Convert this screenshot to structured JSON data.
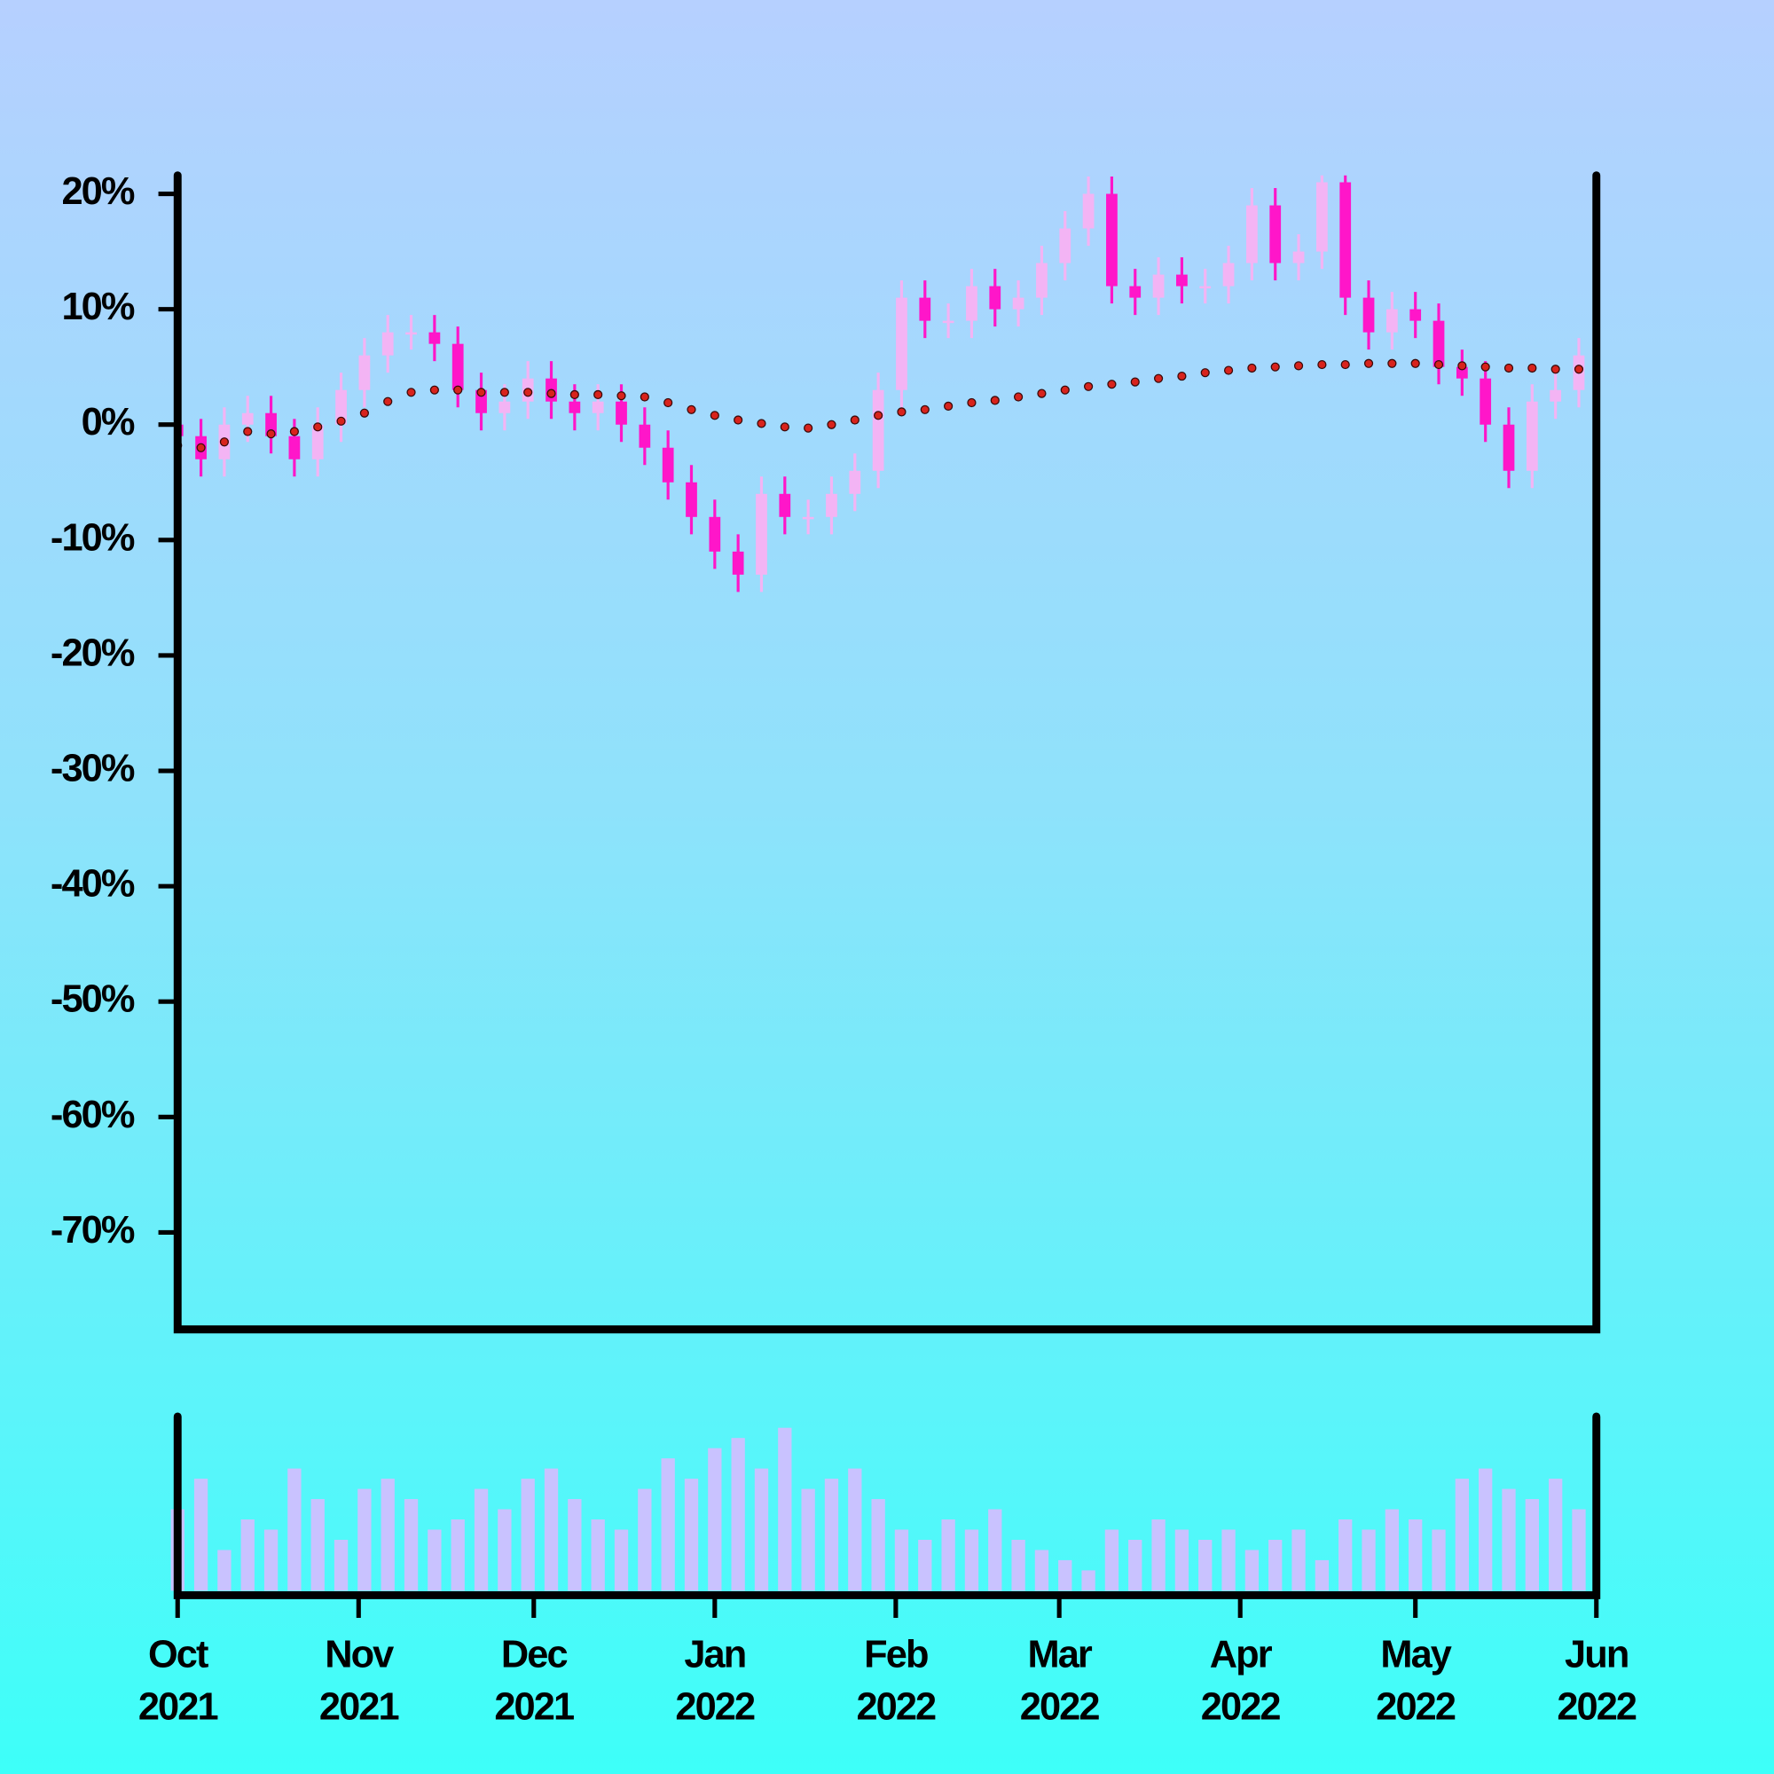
{
  "chart_data": {
    "type": "candlestick",
    "x": [
      0,
      4,
      8,
      12,
      16,
      20,
      24,
      28,
      32,
      36,
      40,
      44,
      48,
      52,
      56,
      60,
      64,
      68,
      72,
      76,
      80,
      84,
      88,
      92,
      96,
      100,
      104,
      108,
      112,
      116,
      120,
      124,
      128,
      132,
      136,
      140,
      144,
      148,
      152,
      156,
      160,
      164,
      168,
      172,
      176,
      180,
      184,
      188,
      192,
      196,
      200,
      204,
      208,
      212,
      216,
      220,
      224,
      228,
      232,
      236,
      240
    ],
    "open": [
      0,
      -1,
      -3,
      0,
      1,
      -1,
      -3,
      0,
      3,
      6,
      8,
      8,
      7,
      3,
      1,
      2,
      4,
      2,
      1,
      2,
      0,
      -2,
      -5,
      -8,
      -11,
      -13,
      -6,
      -8,
      -8,
      -6,
      -4,
      3,
      11,
      9,
      9,
      12,
      10,
      11,
      14,
      17,
      20,
      12,
      11,
      13,
      12,
      12,
      14,
      19,
      14,
      15,
      21,
      11,
      8,
      10,
      9,
      5,
      4,
      0,
      -4,
      2,
      3
    ],
    "high": [
      1.5,
      0.5,
      1.5,
      2.5,
      2.5,
      0.5,
      1.5,
      4.5,
      7.5,
      9.5,
      9.5,
      9.5,
      8.5,
      4.5,
      3.5,
      5.5,
      5.5,
      3.5,
      3.5,
      3.5,
      1.5,
      -0.5,
      -3.5,
      -6.5,
      -9.5,
      -4.5,
      -4.5,
      -6.5,
      -4.5,
      -2.5,
      4.5,
      12.5,
      12.5,
      10.5,
      13.5,
      13.5,
      12.5,
      15.5,
      18.5,
      21.5,
      21.5,
      13.5,
      14.5,
      14.5,
      13.5,
      15.5,
      20.5,
      20.5,
      16.5,
      22.5,
      22.5,
      12.5,
      11.5,
      11.5,
      10.5,
      6.5,
      5.5,
      1.5,
      3.5,
      4.5,
      7.5
    ],
    "low": [
      -2.5,
      -4.5,
      -4.5,
      -1.5,
      -2.5,
      -4.5,
      -4.5,
      -1.5,
      1.5,
      4.5,
      6.5,
      5.5,
      1.5,
      -0.5,
      -0.5,
      0.5,
      0.5,
      -0.5,
      -0.5,
      -1.5,
      -3.5,
      -6.5,
      -9.5,
      -12.5,
      -14.5,
      -14.5,
      -9.5,
      -9.5,
      -9.5,
      -7.5,
      -5.5,
      1.5,
      7.5,
      7.5,
      7.5,
      8.5,
      8.5,
      9.5,
      12.5,
      15.5,
      10.5,
      9.5,
      9.5,
      10.5,
      10.5,
      10.5,
      12.5,
      12.5,
      12.5,
      13.5,
      9.5,
      6.5,
      6.5,
      7.5,
      3.5,
      2.5,
      -1.5,
      -5.5,
      -5.5,
      0.5,
      1.5
    ],
    "close": [
      -1,
      -3,
      0,
      1,
      -1,
      -3,
      0,
      3,
      6,
      8,
      8,
      7,
      3,
      1,
      2,
      4,
      2,
      1,
      2,
      0,
      -2,
      -5,
      -8,
      -11,
      -13,
      -6,
      -8,
      -8,
      -6,
      -4,
      3,
      11,
      9,
      9,
      12,
      10,
      11,
      14,
      17,
      20,
      12,
      11,
      13,
      12,
      12,
      14,
      19,
      14,
      15,
      21,
      11,
      8,
      10,
      9,
      5,
      4,
      0,
      -4,
      2,
      3,
      6
    ],
    "moving_average": [
      -1.8,
      -2,
      -1.5,
      -0.6,
      -0.8,
      -0.6,
      -0.2,
      0.3,
      1.0,
      2.0,
      2.8,
      3.0,
      3.0,
      2.8,
      2.8,
      2.8,
      2.7,
      2.6,
      2.6,
      2.5,
      2.4,
      1.9,
      1.3,
      0.8,
      0.4,
      0.1,
      -0.2,
      -0.3,
      0.0,
      0.4,
      0.8,
      1.1,
      1.3,
      1.6,
      1.9,
      2.1,
      2.4,
      2.7,
      3.0,
      3.3,
      3.5,
      3.7,
      4.0,
      4.2,
      4.5,
      4.7,
      4.9,
      5.0,
      5.1,
      5.2,
      5.2,
      5.3,
      5.3,
      5.3,
      5.2,
      5.1,
      5.0,
      4.9,
      4.9,
      4.8,
      4.8
    ],
    "volume": [
      40,
      55,
      20,
      35,
      30,
      60,
      45,
      25,
      50,
      55,
      45,
      30,
      35,
      50,
      40,
      55,
      60,
      45,
      35,
      30,
      50,
      65,
      55,
      70,
      75,
      60,
      80,
      50,
      55,
      60,
      45,
      30,
      25,
      35,
      30,
      40,
      25,
      20,
      15,
      10,
      30,
      25,
      35,
      30,
      25,
      30,
      20,
      25,
      30,
      15,
      35,
      30,
      40,
      35,
      30,
      55,
      60,
      50,
      45,
      55,
      40
    ],
    "up_color": "#f3b4f4",
    "down_color": "#ff16c9",
    "ma_color": "#d8231c",
    "volume_color": "#c9c2ff",
    "ylim": [
      -78.4,
      21.6
    ],
    "yticks": [
      {
        "value": 20,
        "label": "20%"
      },
      {
        "value": 10,
        "label": "10%"
      },
      {
        "value": 0,
        "label": "0%"
      },
      {
        "value": -10,
        "label": "-10%"
      },
      {
        "value": -20,
        "label": "-20%"
      },
      {
        "value": -30,
        "label": "-30%"
      },
      {
        "value": -40,
        "label": "-40%"
      },
      {
        "value": -50,
        "label": "-50%"
      },
      {
        "value": -60,
        "label": "-60%"
      },
      {
        "value": -70,
        "label": "-70%"
      }
    ],
    "xlim": [
      0,
      243
    ],
    "xticks": [
      {
        "value": 0,
        "label": "Oct 2021"
      },
      {
        "value": 31,
        "label": "Nov 2021"
      },
      {
        "value": 61,
        "label": "Dec 2021"
      },
      {
        "value": 92,
        "label": "Jan 2022"
      },
      {
        "value": 123,
        "label": "Feb 2022"
      },
      {
        "value": 151,
        "label": "Mar 2022"
      },
      {
        "value": 182,
        "label": "Apr 2022"
      },
      {
        "value": 212,
        "label": "May 2022"
      },
      {
        "value": 243,
        "label": "Jun 2022"
      }
    ]
  }
}
